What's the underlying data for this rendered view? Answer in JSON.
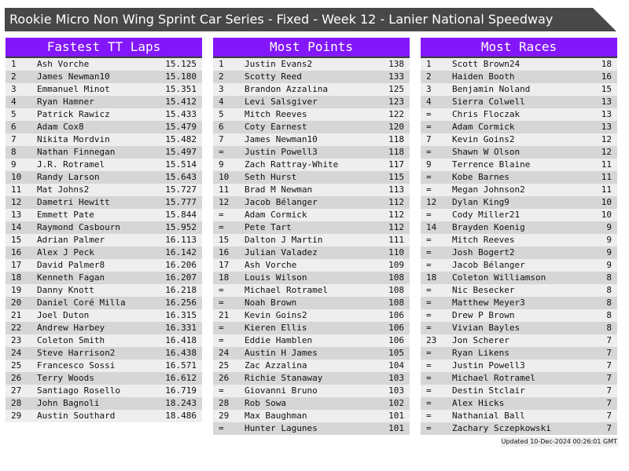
{
  "title": "Rookie Micro Non Wing Sprint Car Series - Fixed - Week 12 - Lanier National Speedway",
  "colors": {
    "header": "#8317f9",
    "titlebar": "#484848",
    "row_light": "#eeeeee",
    "row_dark": "#d6d6d6"
  },
  "panels": [
    {
      "title": "Fastest TT Laps",
      "rows": [
        [
          "1",
          "Ash Vorche",
          "15.125"
        ],
        [
          "2",
          "James Newman10",
          "15.180"
        ],
        [
          "3",
          "Emmanuel Minot",
          "15.351"
        ],
        [
          "4",
          "Ryan Hamner",
          "15.412"
        ],
        [
          "5",
          "Patrick Rawicz",
          "15.433"
        ],
        [
          "6",
          "Adam Cox8",
          "15.479"
        ],
        [
          "7",
          "Nikita Mordvin",
          "15.482"
        ],
        [
          "8",
          "Nathan Finnegan",
          "15.497"
        ],
        [
          "9",
          "J.R. Rotramel",
          "15.514"
        ],
        [
          "10",
          "Randy Larson",
          "15.643"
        ],
        [
          "11",
          "Mat Johns2",
          "15.727"
        ],
        [
          "12",
          "Dametri Hewitt",
          "15.777"
        ],
        [
          "13",
          "Emmett Pate",
          "15.844"
        ],
        [
          "14",
          "Raymond Casbourn",
          "15.952"
        ],
        [
          "15",
          "Adrian Palmer",
          "16.113"
        ],
        [
          "16",
          "Alex J Peck",
          "16.142"
        ],
        [
          "17",
          "David Palmer8",
          "16.206"
        ],
        [
          "18",
          "Kenneth Fagan",
          "16.207"
        ],
        [
          "19",
          "Danny Knott",
          "16.218"
        ],
        [
          "20",
          "Daniel Coré Milla",
          "16.256"
        ],
        [
          "21",
          "Joel Duton",
          "16.315"
        ],
        [
          "22",
          "Andrew Harbey",
          "16.331"
        ],
        [
          "23",
          "Coleton Smith",
          "16.418"
        ],
        [
          "24",
          "Steve Harrison2",
          "16.438"
        ],
        [
          "25",
          "Francesco Sossi",
          "16.571"
        ],
        [
          "26",
          "Terry Woods",
          "16.612"
        ],
        [
          "27",
          "Santiago Rosello",
          "16.719"
        ],
        [
          "28",
          "John Bagnoli",
          "18.243"
        ],
        [
          "29",
          "Austin Southard",
          "18.486"
        ]
      ]
    },
    {
      "title": "Most Points",
      "rows": [
        [
          "1",
          "Justin Evans2",
          "138"
        ],
        [
          "2",
          "Scotty Reed",
          "133"
        ],
        [
          "3",
          "Brandon Azzalina",
          "125"
        ],
        [
          "4",
          "Levi Salsgiver",
          "123"
        ],
        [
          "5",
          "Mitch Reeves",
          "122"
        ],
        [
          "6",
          "Coty Earnest",
          "120"
        ],
        [
          "7",
          "James Newman10",
          "118"
        ],
        [
          "=",
          "Justin Powell3",
          "118"
        ],
        [
          "9",
          "Zach Rattray-White",
          "117"
        ],
        [
          "10",
          "Seth Hurst",
          "115"
        ],
        [
          "11",
          "Brad M Newman",
          "113"
        ],
        [
          "12",
          "Jacob Bélanger",
          "112"
        ],
        [
          "=",
          "Adam Cormick",
          "112"
        ],
        [
          "=",
          "Pete Tart",
          "112"
        ],
        [
          "15",
          "Dalton J Martin",
          "111"
        ],
        [
          "16",
          "Julian Valadez",
          "110"
        ],
        [
          "17",
          "Ash Vorche",
          "109"
        ],
        [
          "18",
          "Louis Wilson",
          "108"
        ],
        [
          "=",
          "Michael Rotramel",
          "108"
        ],
        [
          "=",
          "Noah Brown",
          "108"
        ],
        [
          "21",
          "Kevin Goins2",
          "106"
        ],
        [
          "=",
          "Kieren Ellis",
          "106"
        ],
        [
          "=",
          "Eddie Hamblen",
          "106"
        ],
        [
          "24",
          "Austin H James",
          "105"
        ],
        [
          "25",
          "Zac Azzalina",
          "104"
        ],
        [
          "26",
          "Richie Stanaway",
          "103"
        ],
        [
          "=",
          "Giovanni Bruno",
          "103"
        ],
        [
          "28",
          "Rob Sowa",
          "102"
        ],
        [
          "29",
          "Max Baughman",
          "101"
        ],
        [
          "=",
          "Hunter Lagunes",
          "101"
        ]
      ]
    },
    {
      "title": "Most Races",
      "rows": [
        [
          "1",
          "Scott Brown24",
          "18"
        ],
        [
          "2",
          "Haiden Booth",
          "16"
        ],
        [
          "3",
          "Benjamin Noland",
          "15"
        ],
        [
          "4",
          "Sierra Colwell",
          "13"
        ],
        [
          "=",
          "Chris Floczak",
          "13"
        ],
        [
          "=",
          "Adam Cormick",
          "13"
        ],
        [
          "7",
          "Kevin Goins2",
          "12"
        ],
        [
          "=",
          "Shawn W Olson",
          "12"
        ],
        [
          "9",
          "Terrence Blaine",
          "11"
        ],
        [
          "=",
          "Kobe Barnes",
          "11"
        ],
        [
          "=",
          "Megan Johnson2",
          "11"
        ],
        [
          "12",
          "Dylan King9",
          "10"
        ],
        [
          "=",
          "Cody Miller21",
          "10"
        ],
        [
          "14",
          "Brayden Koenig",
          "9"
        ],
        [
          "=",
          "Mitch Reeves",
          "9"
        ],
        [
          "=",
          "Josh Bogert2",
          "9"
        ],
        [
          "=",
          "Jacob Bélanger",
          "9"
        ],
        [
          "18",
          "Coleton Williamson",
          "8"
        ],
        [
          "=",
          "Nic Besecker",
          "8"
        ],
        [
          "=",
          "Matthew Meyer3",
          "8"
        ],
        [
          "=",
          "Drew P Brown",
          "8"
        ],
        [
          "=",
          "Vivian Bayles",
          "8"
        ],
        [
          "23",
          "Jon Scherer",
          "7"
        ],
        [
          "=",
          "Ryan Likens",
          "7"
        ],
        [
          "=",
          "Justin Powell3",
          "7"
        ],
        [
          "=",
          "Michael Rotramel",
          "7"
        ],
        [
          "=",
          "Destin Stclair",
          "7"
        ],
        [
          "=",
          "Alex Hicks",
          "7"
        ],
        [
          "=",
          "Nathanial Ball",
          "7"
        ],
        [
          "=",
          "Zachary Sczepkowski",
          "7"
        ]
      ]
    }
  ],
  "footer": "Updated 10-Dec-2024 00:26:01 GMT"
}
